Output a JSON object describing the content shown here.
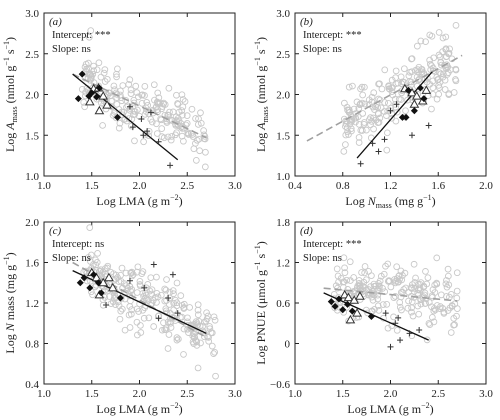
{
  "chart_data": [
    {
      "panel": "(a)",
      "type": "scatter",
      "xlim": [
        1.0,
        3.0
      ],
      "ylim": [
        1.0,
        3.0
      ],
      "xticks": [
        "1.0",
        "1.5",
        "2.0",
        "2.5",
        "3.0"
      ],
      "yticks": [
        "1.0",
        "1.5",
        "2.0",
        "2.5",
        "3.0"
      ],
      "xlabel_main": "Log LMA",
      "xlabel_sub": "",
      "xlabel_unit": " (g m",
      "xlabel_sup": "−2",
      "xlabel_end": ")",
      "ylabel_main": "Log ",
      "ylabel_var": "A",
      "ylabel_sub": "mass",
      "ylabel_unit": " (nmol g",
      "ylabel_sup1": "−1",
      "ylabel_mid": " s",
      "ylabel_sup2": "−1",
      "ylabel_end": ")",
      "annotations": [
        "Intercept: ***",
        "Slope: ns"
      ],
      "grid": false,
      "annotation_position": "top-left",
      "lines": {
        "solid": {
          "x": [
            1.3,
            2.4
          ],
          "y": [
            2.25,
            1.2
          ]
        },
        "dashed": {
          "x": [
            1.3,
            2.7
          ],
          "y": [
            2.25,
            1.47
          ]
        }
      },
      "diamonds": {
        "x": [
          1.36,
          1.4,
          1.47,
          1.5,
          1.55,
          1.58,
          1.77
        ],
        "y": [
          1.95,
          2.25,
          1.98,
          2.02,
          1.97,
          2.08,
          1.72
        ]
      },
      "triangles": {
        "x": [
          1.48,
          1.52,
          1.57,
          1.62,
          1.66,
          1.58
        ],
        "y": [
          1.91,
          2.07,
          2.08,
          1.98,
          1.87,
          1.8
        ]
      },
      "crosses": {
        "x": [
          1.9,
          2.02,
          2.04,
          2.12,
          2.2,
          2.32,
          1.93,
          2.08
        ],
        "y": [
          1.85,
          1.7,
          1.5,
          1.78,
          1.42,
          1.13,
          1.6,
          1.55
        ]
      },
      "background_seed": 11,
      "background_n": 230,
      "background_fn": {
        "xmin": 1.4,
        "xmax": 2.7,
        "a": 2.25,
        "b": -0.56,
        "x0": 1.3,
        "sd": 0.18
      }
    },
    {
      "panel": "(b)",
      "type": "scatter",
      "xlim": [
        0.4,
        2.0
      ],
      "ylim": [
        1.0,
        3.0
      ],
      "xticks": [
        "0.4",
        "0.8",
        "1.2",
        "1.6",
        "2.0"
      ],
      "yticks": [
        "1.0",
        "1.5",
        "2.0",
        "2.5",
        "3.0"
      ],
      "xlabel_main": "Log ",
      "xlabel_var": "N",
      "xlabel_sub": "mass",
      "xlabel_unit": " (mg g",
      "xlabel_sup": "−1",
      "xlabel_end": ")",
      "ylabel_main": "Log ",
      "ylabel_var": "A",
      "ylabel_sub": "mass",
      "ylabel_unit": " (nmol g",
      "ylabel_sup1": "−1",
      "ylabel_mid": " s",
      "ylabel_sup2": "−1",
      "ylabel_end": ")",
      "annotations": [
        "Intercept: ***",
        "Slope: ns"
      ],
      "grid": false,
      "annotation_position": "top-left",
      "lines": {
        "solid": {
          "x": [
            0.92,
            1.55
          ],
          "y": [
            1.22,
            2.28
          ]
        },
        "dashed": {
          "x": [
            0.5,
            1.8
          ],
          "y": [
            1.43,
            2.48
          ]
        }
      },
      "diamonds": {
        "x": [
          1.3,
          1.35,
          1.4,
          1.45,
          1.48,
          1.33
        ],
        "y": [
          1.72,
          2.05,
          1.8,
          2.08,
          1.95,
          1.72
        ]
      },
      "triangles": {
        "x": [
          1.32,
          1.38,
          1.42,
          1.47,
          1.5,
          1.4
        ],
        "y": [
          2.07,
          2.02,
          1.98,
          1.92,
          2.05,
          1.88
        ]
      },
      "crosses": {
        "x": [
          0.95,
          1.1,
          1.15,
          1.2,
          1.38,
          1.52,
          1.05,
          1.25
        ],
        "y": [
          1.15,
          1.3,
          1.45,
          1.8,
          1.5,
          1.62,
          1.4,
          1.88
        ]
      },
      "background_seed": 23,
      "background_n": 230,
      "background_fn": {
        "xmin": 0.8,
        "xmax": 1.75,
        "a": 1.43,
        "b": 0.81,
        "x0": 0.5,
        "sd": 0.18
      }
    },
    {
      "panel": "(c)",
      "type": "scatter",
      "xlim": [
        1.0,
        3.0
      ],
      "ylim": [
        0.4,
        2.0
      ],
      "xticks": [
        "1.0",
        "1.5",
        "2.0",
        "2.5",
        "3.0"
      ],
      "yticks": [
        "0.4",
        "0.8",
        "1.2",
        "1.6",
        "2.0"
      ],
      "xlabel_main": "Log LMA",
      "xlabel_sub": "",
      "xlabel_unit": " (g m",
      "xlabel_sup": "−2",
      "xlabel_end": ")",
      "ylabel_main": "Log ",
      "ylabel_var": "N",
      "ylabel_sub": "",
      "ylabel_unit": " mass (mg g",
      "ylabel_sup1": "−1",
      "ylabel_mid": "",
      "ylabel_sup2": "",
      "ylabel_end": ")",
      "annotations": [
        "Intercept: ns",
        "Slope: ns"
      ],
      "grid": false,
      "annotation_position": "top-left",
      "lines": {
        "solid": {
          "x": [
            1.3,
            2.7
          ],
          "y": [
            1.52,
            0.9
          ]
        },
        "dashed": {
          "x": [
            1.3,
            2.7
          ],
          "y": [
            1.6,
            0.86
          ]
        }
      },
      "diamonds": {
        "x": [
          1.38,
          1.42,
          1.48,
          1.52,
          1.57,
          1.6,
          1.8
        ],
        "y": [
          1.4,
          1.45,
          1.35,
          1.48,
          1.4,
          1.3,
          1.25
        ]
      },
      "triangles": {
        "x": [
          1.5,
          1.55,
          1.62,
          1.68,
          1.72,
          1.58
        ],
        "y": [
          1.5,
          1.45,
          1.4,
          1.45,
          1.35,
          1.28
        ]
      },
      "crosses": {
        "x": [
          1.65,
          1.9,
          2.05,
          2.15,
          2.3,
          2.4,
          2.2,
          2.35
        ],
        "y": [
          1.18,
          1.42,
          1.35,
          1.58,
          1.25,
          1.1,
          1.05,
          1.48
        ]
      },
      "background_seed": 37,
      "background_n": 260,
      "background_fn": {
        "xmin": 1.4,
        "xmax": 2.8,
        "a": 1.58,
        "b": -0.5,
        "x0": 1.3,
        "sd": 0.15
      }
    },
    {
      "panel": "(d)",
      "type": "scatter",
      "xlim": [
        1.0,
        3.0
      ],
      "ylim": [
        -0.6,
        1.8
      ],
      "xticks": [
        "1.0",
        "1.5",
        "2.0",
        "2.5",
        "3.0"
      ],
      "yticks": [
        "−0.6",
        "0",
        "0.6",
        "1.2",
        "1.8"
      ],
      "xlabel_main": "Log LMA",
      "xlabel_sub": "",
      "xlabel_unit": " (g m",
      "xlabel_sup": "−2",
      "xlabel_end": ")",
      "ylabel_main": "Log PNUE",
      "ylabel_var": "",
      "ylabel_sub": "",
      "ylabel_unit": " (μmol g",
      "ylabel_sup1": "−1",
      "ylabel_mid": " s",
      "ylabel_sup2": "−1",
      "ylabel_end": ")",
      "annotations": [
        "Intercept: ***",
        "Slope: ns"
      ],
      "grid": false,
      "annotation_position": "top-left",
      "lines": {
        "solid": {
          "x": [
            1.3,
            2.4
          ],
          "y": [
            0.75,
            0.05
          ]
        },
        "dashed": {
          "x": [
            1.3,
            2.7
          ],
          "y": [
            0.82,
            0.63
          ]
        }
      },
      "diamonds": {
        "x": [
          1.38,
          1.42,
          1.46,
          1.5,
          1.55,
          1.6,
          1.8
        ],
        "y": [
          0.62,
          0.55,
          0.66,
          0.5,
          0.58,
          0.48,
          0.4
        ]
      },
      "triangles": {
        "x": [
          1.52,
          1.56,
          1.62,
          1.68,
          1.65,
          1.58
        ],
        "y": [
          0.72,
          0.68,
          0.64,
          0.7,
          0.45,
          0.35
        ]
      },
      "crosses": {
        "x": [
          1.95,
          2.05,
          2.1,
          2.3,
          2.0,
          2.2,
          2.08
        ],
        "y": [
          0.45,
          0.3,
          0.05,
          0.2,
          -0.05,
          0.15,
          0.38
        ]
      },
      "background_seed": 53,
      "background_n": 230,
      "background_fn": {
        "xmin": 1.4,
        "xmax": 2.7,
        "a": 0.82,
        "b": -0.13,
        "x0": 1.3,
        "sd": 0.22
      }
    }
  ]
}
